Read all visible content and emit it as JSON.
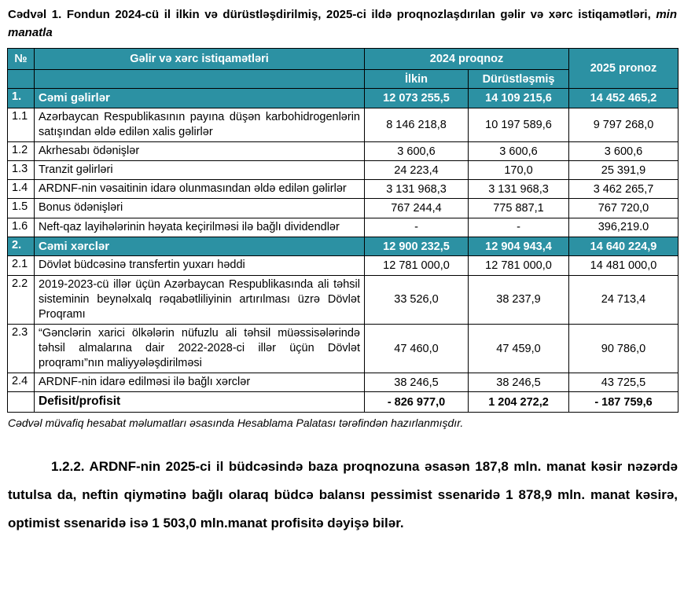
{
  "caption": {
    "label": "Cədvəl 1.",
    "text": "Fondun 2024-cü il ilkin və dürüstləşdirilmiş, 2025-ci ildə proqnozlaşdırılan gəlir və xərc istiqamətləri,",
    "emphasis": "min manatla"
  },
  "table": {
    "headers": {
      "num": "№",
      "direction": "Gəlir və xərc istiqamətləri",
      "group_2024": "2024 proqnoz",
      "col_2025": "2025 pronoz",
      "initial": "İlkin",
      "adjusted": "Dürüstləşmiş"
    },
    "rows": [
      {
        "num": "1.",
        "label": "Cəmi gəlirlər",
        "v2024_initial": "12 073 255,5",
        "v2024_adjusted": "14 109 215,6",
        "v2025": "14 452 465,2",
        "type": "section"
      },
      {
        "num": "1.1",
        "label": "Azərbaycan Respublikasının payına düşən karbohidrogenlərin satışından əldə edilən xalis gəlirlər",
        "v2024_initial": "8 146 218,8",
        "v2024_adjusted": "10 197 589,6",
        "v2025": "9 797 268,0",
        "type": "normal"
      },
      {
        "num": "1.2",
        "label": "Akrhesabı ödənişlər",
        "v2024_initial": "3 600,6",
        "v2024_adjusted": "3 600,6",
        "v2025": "3 600,6",
        "type": "normal"
      },
      {
        "num": "1.3",
        "label": "Tranzit gəlirləri",
        "v2024_initial": "24 223,4",
        "v2024_adjusted": "170,0",
        "v2025": "25 391,9",
        "type": "normal"
      },
      {
        "num": "1.4",
        "label": "ARDNF-nin vəsaitinin idarə olunmasından əldə edilən gəlirlər",
        "v2024_initial": "3 131 968,3",
        "v2024_adjusted": "3 131 968,3",
        "v2025": "3 462 265,7",
        "type": "normal"
      },
      {
        "num": "1.5",
        "label": "Bonus ödənişləri",
        "v2024_initial": "767 244,4",
        "v2024_adjusted": "775 887,1",
        "v2025": "767 720,0",
        "type": "normal"
      },
      {
        "num": "1.6",
        "label": "Neft-qaz layihələrinin həyata keçirilməsi ilə bağlı dividendlər",
        "v2024_initial": "-",
        "v2024_adjusted": "-",
        "v2025": "396,219.0",
        "type": "normal"
      },
      {
        "num": "2.",
        "label": "Cəmi xərclər",
        "v2024_initial": "12 900 232,5",
        "v2024_adjusted": "12 904 943,4",
        "v2025": "14 640 224,9",
        "type": "section"
      },
      {
        "num": "2.1",
        "label": "Dövlət büdcəsinə transfertin yuxarı həddi",
        "v2024_initial": "12 781 000,0",
        "v2024_adjusted": "12 781 000,0",
        "v2025": "14 481 000,0",
        "type": "normal"
      },
      {
        "num": "2.2",
        "label": "2019-2023-cü illər üçün Azərbaycan Respublikasında ali təhsil sisteminin beynəlxalq rəqabətliliyinin artırılması üzrə Dövlət Proqramı",
        "v2024_initial": "33 526,0",
        "v2024_adjusted": "38 237,9",
        "v2025": "24 713,4",
        "type": "normal"
      },
      {
        "num": "2.3",
        "label": "“Gənclərin xarici ölkələrin nüfuzlu ali təhsil müəssisələrində təhsil almalarına dair 2022-2028-ci illər üçün Dövlət proqramı”nın maliyyələşdirilməsi",
        "v2024_initial": "47 460,0",
        "v2024_adjusted": "47 459,0",
        "v2025": "90 786,0",
        "type": "normal"
      },
      {
        "num": "2.4",
        "label": "ARDNF-nin idarə edilməsi ilə bağlı xərclər",
        "v2024_initial": "38 246,5",
        "v2024_adjusted": "38 246,5",
        "v2025": "43 725,5",
        "type": "normal"
      },
      {
        "num": "",
        "label": "Defisit/profisit",
        "v2024_initial": "- 826 977,0",
        "v2024_adjusted": "1 204 272,2",
        "v2025": "- 187 759,6",
        "type": "total"
      }
    ]
  },
  "footnote": "Cədvəl müvafiq hesabat məlumatları əsasında Hesablama Palatası tərəfindən hazırlanmışdır.",
  "paragraph": "1.2.2. ARDNF-nin 2025-ci il büdcəsində baza proqnozuna əsasən 187,8 mln. manat kəsir nəzərdə tutulsa da, neftin qiymətinə bağlı olaraq büdcə balansı pessimist ssenaridə 1 878,9 mln. manat kəsirə, optimist ssenaridə isə 1 503,0 mln.manat profisitə dəyişə bilər.",
  "colors": {
    "header_teal": "#2C91A3",
    "text": "#000000",
    "header_text": "#ffffff"
  }
}
